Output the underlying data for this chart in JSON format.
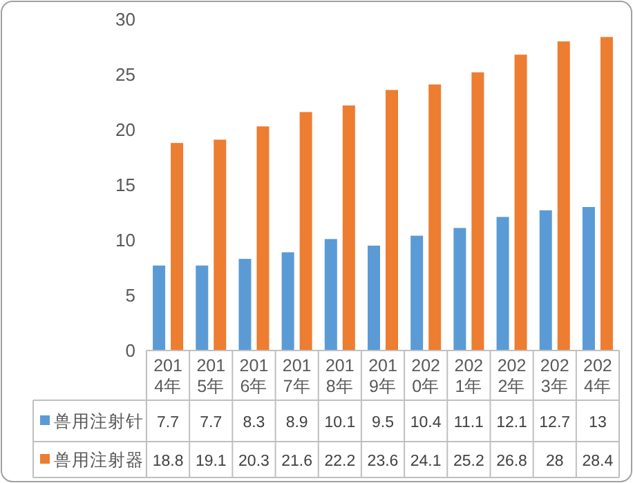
{
  "chart_data": {
    "type": "bar",
    "categories": [
      "2014年",
      "2015年",
      "2016年",
      "2017年",
      "2018年",
      "2019年",
      "2020年",
      "2021年",
      "2022年",
      "2023年",
      "2024年"
    ],
    "series": [
      {
        "name": "兽用注射针",
        "color": "#5b9bd5",
        "values": [
          7.7,
          7.7,
          8.3,
          8.9,
          10.1,
          9.5,
          10.4,
          11.1,
          12.1,
          12.7,
          13
        ]
      },
      {
        "name": "兽用注射器",
        "color": "#ed7d31",
        "values": [
          18.8,
          19.1,
          20.3,
          21.6,
          22.2,
          23.6,
          24.1,
          25.2,
          26.8,
          28,
          28.4
        ]
      }
    ],
    "ylim": [
      0,
      30
    ],
    "yticks": [
      0,
      5,
      10,
      15,
      20,
      25,
      30
    ],
    "data_labels": true,
    "legend": "bottom"
  }
}
